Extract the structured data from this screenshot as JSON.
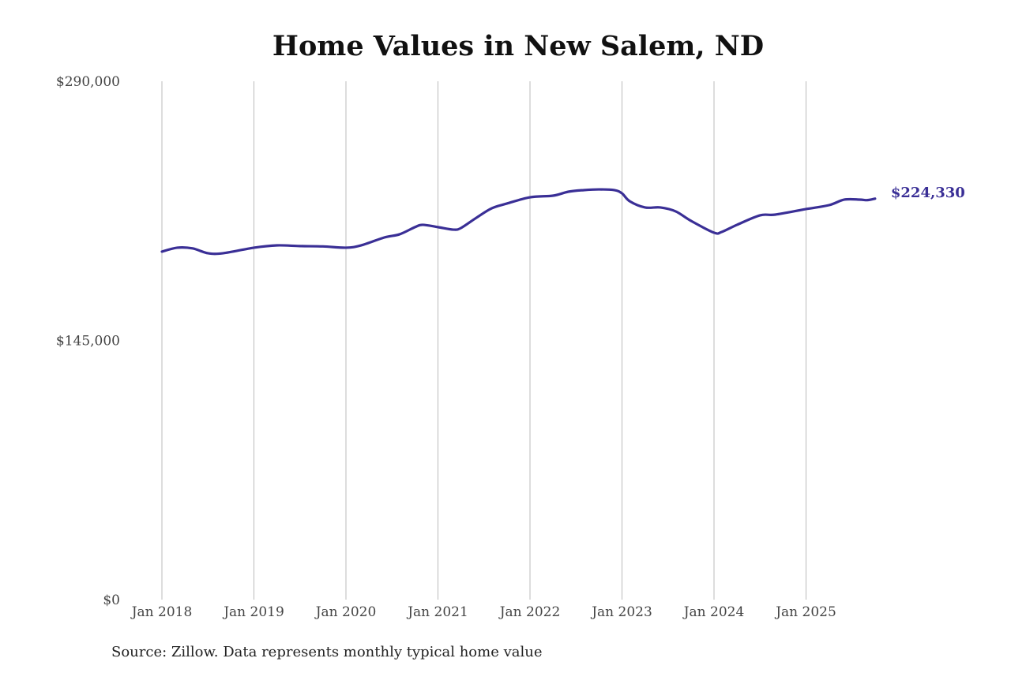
{
  "chart_data": {
    "type": "line",
    "title": "Home Values in New Salem, ND",
    "source": "Source: Zillow. Data represents monthly typical home value",
    "xlabel": "",
    "ylabel": "",
    "ylim": [
      0,
      290000
    ],
    "y_ticks": [
      {
        "value": 0,
        "label": "$0"
      },
      {
        "value": 145000,
        "label": "$145,000"
      },
      {
        "value": 290000,
        "label": "$290,000"
      }
    ],
    "x_ticks": [
      {
        "value": "2018-01",
        "label": "Jan 2018"
      },
      {
        "value": "2019-01",
        "label": "Jan 2019"
      },
      {
        "value": "2020-01",
        "label": "Jan 2020"
      },
      {
        "value": "2021-01",
        "label": "Jan 2021"
      },
      {
        "value": "2022-01",
        "label": "Jan 2022"
      },
      {
        "value": "2023-01",
        "label": "Jan 2023"
      },
      {
        "value": "2024-01",
        "label": "Jan 2024"
      },
      {
        "value": "2025-01",
        "label": "Jan 2025"
      }
    ],
    "grid": "vertical",
    "line_color": "#3a2f96",
    "end_label": "$224,330",
    "series": [
      {
        "points": [
          [
            "2018-01",
            194700
          ],
          [
            "2018-03",
            196900
          ],
          [
            "2018-05",
            196500
          ],
          [
            "2018-07",
            193800
          ],
          [
            "2018-09",
            193800
          ],
          [
            "2019-01",
            196900
          ],
          [
            "2019-04",
            198200
          ],
          [
            "2019-07",
            197800
          ],
          [
            "2019-10",
            197600
          ],
          [
            "2020-01",
            196900
          ],
          [
            "2020-03",
            198200
          ],
          [
            "2020-06",
            202600
          ],
          [
            "2020-08",
            204400
          ],
          [
            "2020-10",
            208400
          ],
          [
            "2020-11",
            209700
          ],
          [
            "2021-01",
            208400
          ],
          [
            "2021-03",
            207000
          ],
          [
            "2021-04",
            207900
          ],
          [
            "2021-06",
            213600
          ],
          [
            "2021-08",
            218900
          ],
          [
            "2021-10",
            221600
          ],
          [
            "2022-01",
            225100
          ],
          [
            "2022-04",
            226000
          ],
          [
            "2022-06",
            228200
          ],
          [
            "2022-08",
            229100
          ],
          [
            "2022-10",
            229500
          ],
          [
            "2022-12",
            229100
          ],
          [
            "2023-01",
            227300
          ],
          [
            "2023-02",
            222900
          ],
          [
            "2023-04",
            219400
          ],
          [
            "2023-06",
            219400
          ],
          [
            "2023-08",
            217200
          ],
          [
            "2023-10",
            211900
          ],
          [
            "2024-01",
            205300
          ],
          [
            "2024-02",
            205700
          ],
          [
            "2024-04",
            209700
          ],
          [
            "2024-07",
            215000
          ],
          [
            "2024-09",
            215400
          ],
          [
            "2025-01",
            218500
          ],
          [
            "2025-04",
            220700
          ],
          [
            "2025-06",
            223800
          ],
          [
            "2025-08",
            223800
          ],
          [
            "2025-09",
            223500
          ],
          [
            "2025-10",
            224330
          ]
        ]
      }
    ]
  }
}
